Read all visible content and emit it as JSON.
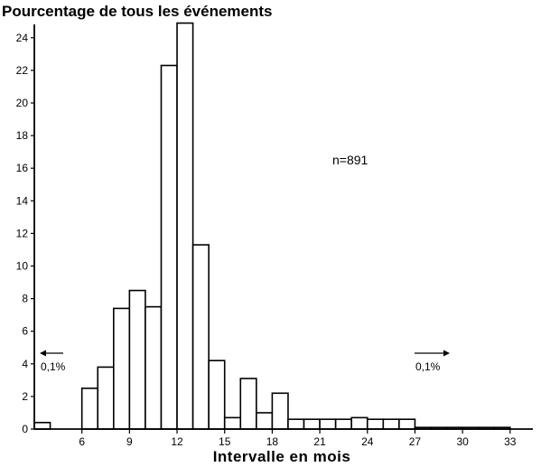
{
  "chart_data": {
    "type": "bar",
    "title": "Pourcentage de tous les événements",
    "xlabel": "Intervalle en mois",
    "ylabel": "",
    "annotation_n": "n=891",
    "left_note": "0,1%",
    "right_note": "0,1%",
    "xlim": [
      3,
      34
    ],
    "ylim": [
      0,
      25
    ],
    "xticks": [
      6,
      9,
      12,
      15,
      18,
      21,
      24,
      27,
      30,
      33
    ],
    "yticks": [
      0,
      2,
      4,
      6,
      8,
      10,
      12,
      14,
      16,
      18,
      20,
      22,
      24
    ],
    "x": [
      3,
      4,
      5,
      6,
      7,
      8,
      9,
      10,
      11,
      12,
      13,
      14,
      15,
      16,
      17,
      18,
      19,
      20,
      21,
      22,
      23,
      24,
      25,
      26,
      27,
      28,
      29,
      30,
      31,
      32,
      33
    ],
    "values": [
      0.4,
      0,
      0,
      2.5,
      3.8,
      7.4,
      8.5,
      7.5,
      22.3,
      24.9,
      11.3,
      4.2,
      0.7,
      3.1,
      1.0,
      2.2,
      0.6,
      0.6,
      0.6,
      0.6,
      0.7,
      0.6,
      0.6,
      0.6,
      0.1,
      0.1,
      0.1,
      0.1,
      0.1,
      0.1,
      0
    ],
    "grid": false,
    "legend": "none"
  }
}
